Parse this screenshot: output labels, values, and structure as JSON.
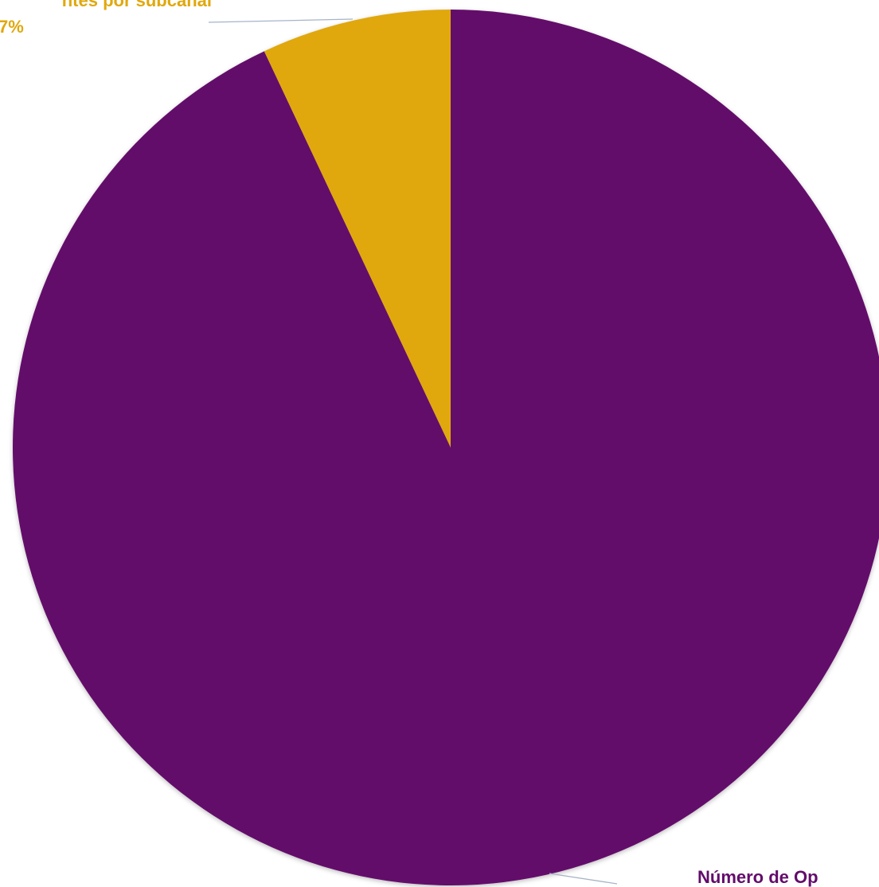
{
  "chart_data": {
    "type": "pie",
    "categories": [
      "Número de Op",
      "ntes por subcanal"
    ],
    "values": [
      93,
      7
    ],
    "value_labels": [
      null,
      "7%"
    ],
    "colors": [
      "#630c6b",
      "#e0a80d"
    ]
  }
}
